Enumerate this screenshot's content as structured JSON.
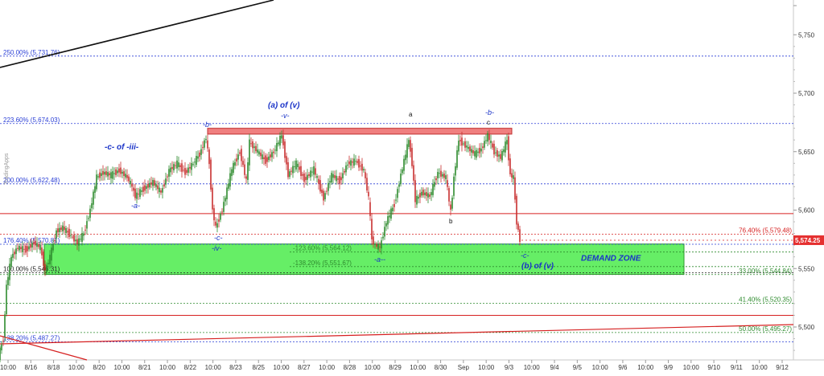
{
  "chart_data": {
    "type": "candlestick",
    "y_axis": {
      "range": [
        5460,
        5780
      ],
      "ticks": [
        {
          "value": 5750,
          "label": "5,750"
        },
        {
          "value": 5700,
          "label": "5,700"
        },
        {
          "value": 5650,
          "label": "5,650"
        },
        {
          "value": 5600,
          "label": "5,600"
        },
        {
          "value": 5550,
          "label": "5,550"
        },
        {
          "value": 5500,
          "label": "5,500"
        }
      ],
      "current_price": {
        "value": 5574.25,
        "label": "5,574.25"
      }
    },
    "x_axis": {
      "ticks": [
        "10:00",
        "8/16",
        "8/18",
        "10:00",
        "8/20",
        "10:00",
        "8/21",
        "10:00",
        "8/22",
        "10:00",
        "8/23",
        "8/25",
        "10:00",
        "8/27",
        "10:00",
        "8/28",
        "10:00",
        "8/29",
        "10:00",
        "8/30",
        "Sep",
        "10:00",
        "9/3",
        "10:00",
        "9/4",
        "9/5",
        "10:00",
        "9/6",
        "10:00",
        "9/9",
        "10:00",
        "9/10",
        "9/11",
        "10:00",
        "9/12"
      ]
    },
    "fib_levels_left": [
      {
        "label": "250.00% (5,731.76)",
        "value": 5731.76,
        "color": "#2a3fd6"
      },
      {
        "label": "223.60% (5,674.03)",
        "value": 5674.03,
        "color": "#2a3fd6"
      },
      {
        "label": "200.00% (5,622.48)",
        "value": 5622.48,
        "color": "#2a3fd6"
      },
      {
        "label": "176.40% (5,570.81)",
        "value": 5570.81,
        "color": "#2a3fd6"
      },
      {
        "label": "100.00% (5,546.31)",
        "value": 5546.31,
        "color": "#222222"
      },
      {
        "label": "138.20% (5,487.27)",
        "value": 5487.27,
        "color": "#2a3fd6"
      }
    ],
    "fib_levels_right": [
      {
        "label": "76.40% (5,579.48)",
        "value": 5579.48,
        "color": "#d62020"
      },
      {
        "label": "33.00% (5,544.84)",
        "value": 5544.84,
        "color": "#2e8b2e"
      },
      {
        "label": "41.40% (5,520.35)",
        "value": 5520.35,
        "color": "#2e8b2e"
      },
      {
        "label": "50.00% (5,495.27)",
        "value": 5495.27,
        "color": "#2e8b2e"
      }
    ],
    "fib_levels_mid": [
      {
        "label": "-123.60% (5,564.12)",
        "value": 5564.12,
        "color": "#2e8b2e"
      },
      {
        "label": "-138.20% (5,551.67)",
        "value": 5551.67,
        "color": "#2e8b2e"
      }
    ],
    "horizontal_lines": [
      {
        "value": 5597.0,
        "color": "#d62020"
      },
      {
        "value": 5510.0,
        "color": "#d62020"
      }
    ],
    "resistance_box": {
      "top": 5670,
      "bottom": 5665,
      "color": "#f07f7f"
    },
    "demand_zone": {
      "label": "DEMAND ZONE",
      "top": 5571,
      "bottom": 5545,
      "color": "#66ee66"
    },
    "wave_labels": [
      {
        "text": "-c- of -iii-",
        "style": "italic-bold-blue"
      },
      {
        "text": "-a-",
        "style": "italic-blue"
      },
      {
        "text": "-b-",
        "style": "italic-blue"
      },
      {
        "text": "(a) of (v)",
        "style": "italic-bold-blue"
      },
      {
        "text": "-v-",
        "style": "italic-blue"
      },
      {
        "text": "-c-",
        "style": "italic-blue"
      },
      {
        "text": "-iv-",
        "style": "italic-blue"
      },
      {
        "text": "a",
        "style": "black"
      },
      {
        "text": "-b-",
        "style": "italic-blue"
      },
      {
        "text": "c",
        "style": "black"
      },
      {
        "text": "b",
        "style": "black"
      },
      {
        "text": "-a--",
        "style": "italic-blue"
      },
      {
        "text": "-c-",
        "style": "italic-blue"
      },
      {
        "text": "(b) of (v)",
        "style": "italic-bold-blue"
      }
    ],
    "watermark": "TradingApps",
    "series": [
      {
        "name": "",
        "points": [
          [
            0,
            5475
          ],
          [
            6,
            5490
          ],
          [
            10,
            5535
          ],
          [
            16,
            5560
          ],
          [
            24,
            5568
          ],
          [
            34,
            5566
          ],
          [
            44,
            5572
          ],
          [
            52,
            5568
          ],
          [
            58,
            5548
          ],
          [
            64,
            5560
          ],
          [
            72,
            5582
          ],
          [
            80,
            5585
          ],
          [
            90,
            5578
          ],
          [
            98,
            5572
          ],
          [
            106,
            5580
          ],
          [
            114,
            5600
          ],
          [
            122,
            5628
          ],
          [
            130,
            5632
          ],
          [
            140,
            5630
          ],
          [
            150,
            5634
          ],
          [
            160,
            5628
          ],
          [
            166,
            5620
          ],
          [
            170,
            5612
          ],
          [
            180,
            5618
          ],
          [
            192,
            5624
          ],
          [
            202,
            5615
          ],
          [
            212,
            5634
          ],
          [
            222,
            5640
          ],
          [
            232,
            5632
          ],
          [
            242,
            5640
          ],
          [
            250,
            5648
          ],
          [
            258,
            5662
          ],
          [
            262,
            5640
          ],
          [
            266,
            5600
          ],
          [
            270,
            5585
          ],
          [
            278,
            5600
          ],
          [
            290,
            5635
          ],
          [
            300,
            5650
          ],
          [
            308,
            5625
          ],
          [
            312,
            5658
          ],
          [
            322,
            5650
          ],
          [
            332,
            5642
          ],
          [
            342,
            5650
          ],
          [
            352,
            5664
          ],
          [
            360,
            5630
          ],
          [
            370,
            5640
          ],
          [
            380,
            5626
          ],
          [
            392,
            5635
          ],
          [
            404,
            5610
          ],
          [
            414,
            5630
          ],
          [
            424,
            5625
          ],
          [
            434,
            5640
          ],
          [
            444,
            5642
          ],
          [
            454,
            5634
          ],
          [
            460,
            5610
          ],
          [
            464,
            5575
          ],
          [
            468,
            5570
          ],
          [
            474,
            5568
          ],
          [
            482,
            5590
          ],
          [
            492,
            5605
          ],
          [
            500,
            5630
          ],
          [
            510,
            5660
          ],
          [
            514,
            5640
          ],
          [
            518,
            5608
          ],
          [
            526,
            5615
          ],
          [
            536,
            5612
          ],
          [
            546,
            5632
          ],
          [
            556,
            5628
          ],
          [
            562,
            5598
          ],
          [
            566,
            5628
          ],
          [
            572,
            5660
          ],
          [
            582,
            5654
          ],
          [
            592,
            5648
          ],
          [
            600,
            5652
          ],
          [
            608,
            5664
          ],
          [
            616,
            5650
          ],
          [
            624,
            5645
          ],
          [
            632,
            5660
          ],
          [
            636,
            5630
          ],
          [
            640,
            5628
          ],
          [
            644,
            5590
          ],
          [
            648,
            5574
          ]
        ]
      }
    ]
  }
}
